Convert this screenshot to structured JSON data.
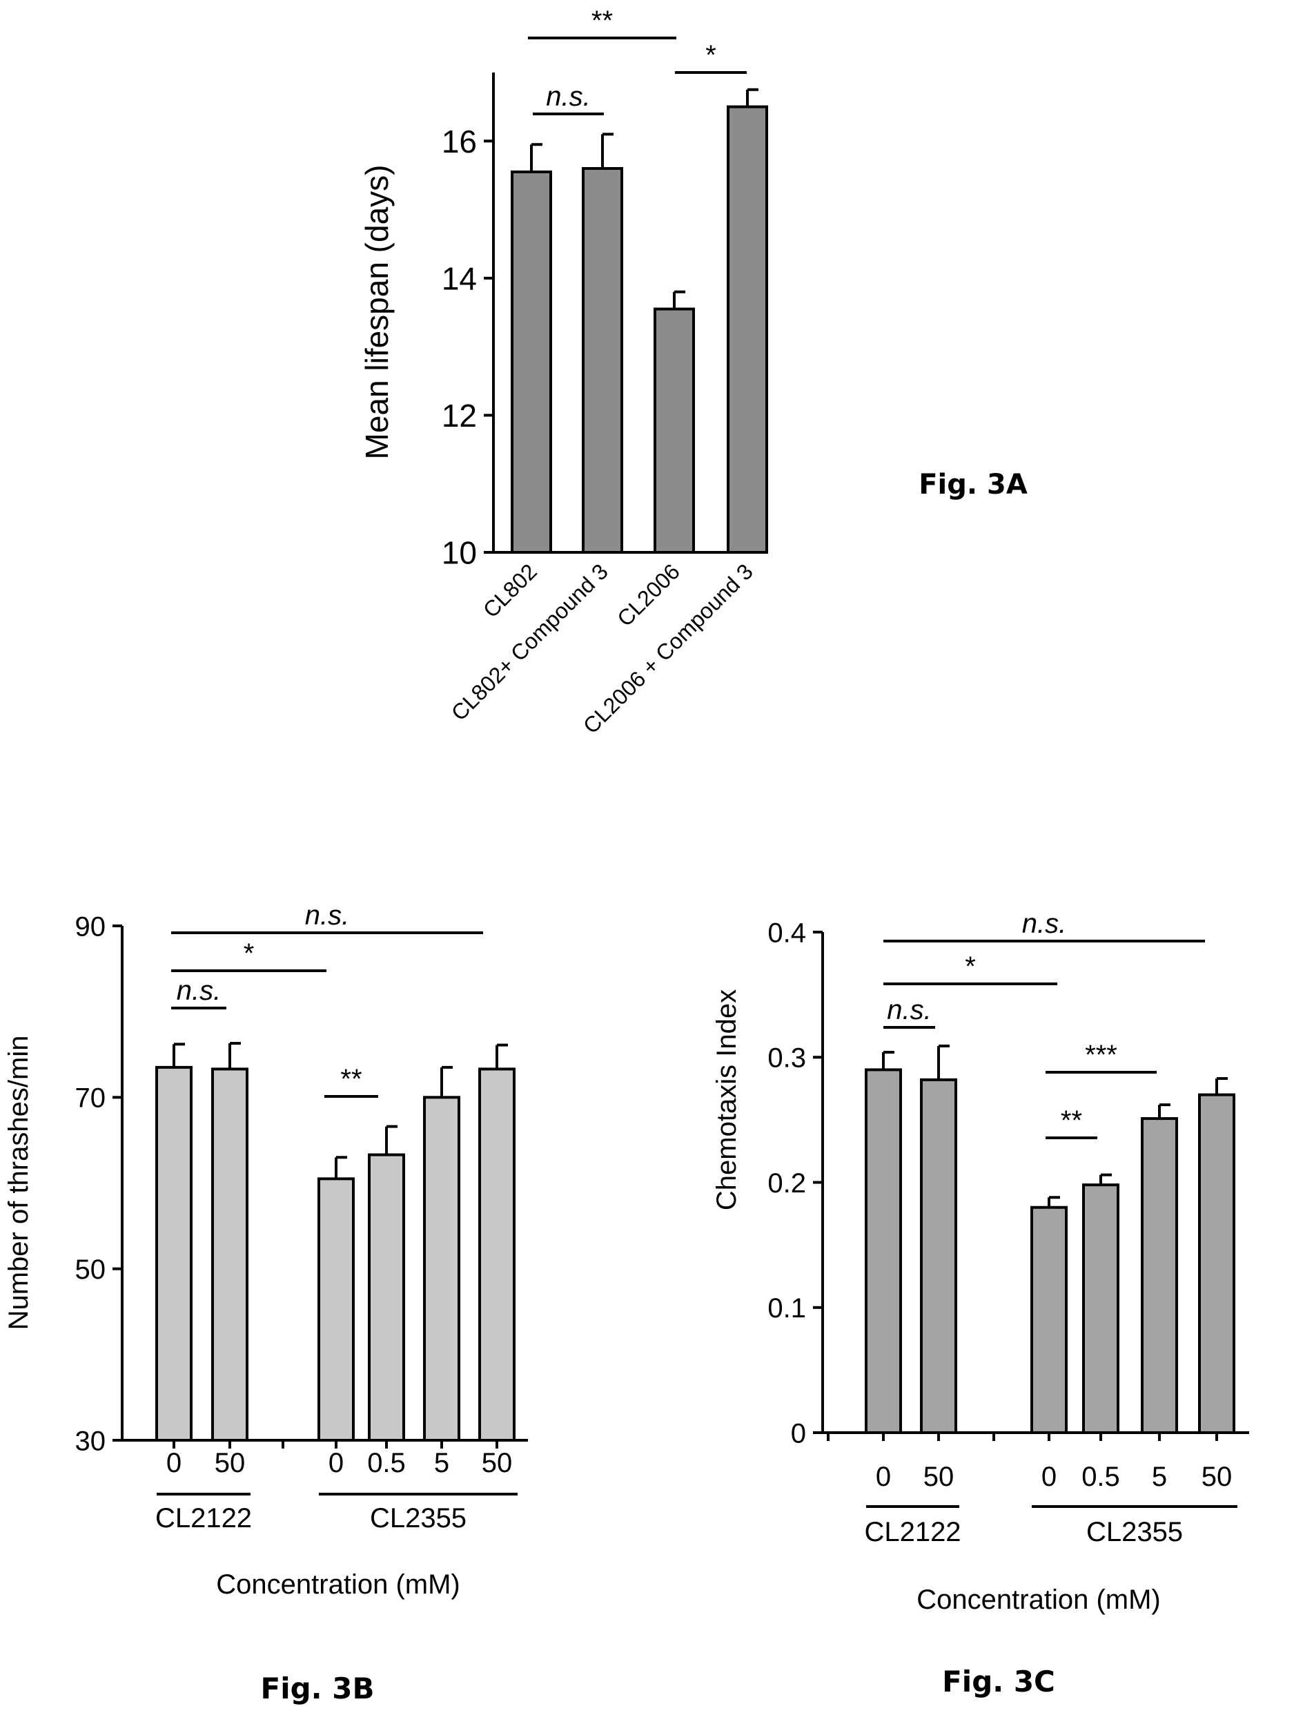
{
  "figures": [
    {
      "label": "Fig. 3A"
    },
    {
      "label": "Fig. 3B"
    },
    {
      "label": "Fig. 3C"
    }
  ],
  "chart_data": [
    {
      "type": "bar",
      "categories": [
        "CL802",
        "CL802+ Compound 3",
        "CL2006",
        "CL2006 + Compound 3"
      ],
      "values": [
        15.55,
        15.6,
        13.55,
        16.5
      ],
      "errors": [
        0.4,
        0.5,
        0.25,
        0.25
      ],
      "ylabel": "Mean lifespan (days)",
      "ylim": [
        10,
        17
      ],
      "yticks": [
        10,
        12,
        14,
        16
      ],
      "bar_color": "#8c8c8c",
      "significance": [
        {
          "from": 0,
          "to": 2,
          "text": "**"
        },
        {
          "from": 2,
          "to": 3,
          "text": "*"
        },
        {
          "from": 0,
          "to": 1,
          "text": "n.s.",
          "italic": true
        }
      ]
    },
    {
      "type": "bar",
      "categories": [
        "0",
        "50",
        "0",
        "0.5",
        "5",
        "50"
      ],
      "groups": [
        {
          "name": "CL2122",
          "members": [
            0,
            1
          ]
        },
        {
          "name": "CL2355",
          "members": [
            2,
            3,
            4,
            5
          ]
        }
      ],
      "values": [
        73.5,
        73.3,
        60.5,
        63.3,
        70,
        73.3
      ],
      "errors": [
        2.7,
        3,
        2.5,
        3.3,
        3.5,
        2.8
      ],
      "xlabel": "Concentration (mM)",
      "ylabel": "Number of thrashes/min",
      "ylim": [
        30,
        90
      ],
      "yticks": [
        30,
        50,
        70,
        90
      ],
      "bar_color": "#c8c8c8",
      "significance": [
        {
          "from": 0,
          "to": 5,
          "text": "n.s.",
          "italic": true
        },
        {
          "from": 0,
          "to": 2,
          "text": "*"
        },
        {
          "from": 0,
          "to": 1,
          "text": "n.s.",
          "italic": true
        },
        {
          "from": 2,
          "to": 3,
          "text": "**"
        }
      ]
    },
    {
      "type": "bar",
      "categories": [
        "0",
        "50",
        "0",
        "0.5",
        "5",
        "50"
      ],
      "groups": [
        {
          "name": "CL2122",
          "members": [
            0,
            1
          ]
        },
        {
          "name": "CL2355",
          "members": [
            2,
            3,
            4,
            5
          ]
        }
      ],
      "values": [
        0.29,
        0.282,
        0.18,
        0.198,
        0.251,
        0.27
      ],
      "errors": [
        0.014,
        0.027,
        0.008,
        0.008,
        0.011,
        0.013
      ],
      "xlabel": "Concentration (mM)",
      "ylabel": "Chemotaxis Index",
      "ylim": [
        0,
        0.4
      ],
      "yticks": [
        "0",
        "0.1",
        "0.2",
        "0.3",
        "0.4"
      ],
      "bar_color": "#a4a4a4",
      "significance": [
        {
          "from": 0,
          "to": 5,
          "text": "n.s.",
          "italic": true
        },
        {
          "from": 0,
          "to": 2,
          "text": "*"
        },
        {
          "from": 0,
          "to": 1,
          "text": "n.s.",
          "italic": true
        },
        {
          "from": 2,
          "to": 4,
          "text": "***"
        },
        {
          "from": 2,
          "to": 3,
          "text": "**"
        }
      ]
    }
  ]
}
